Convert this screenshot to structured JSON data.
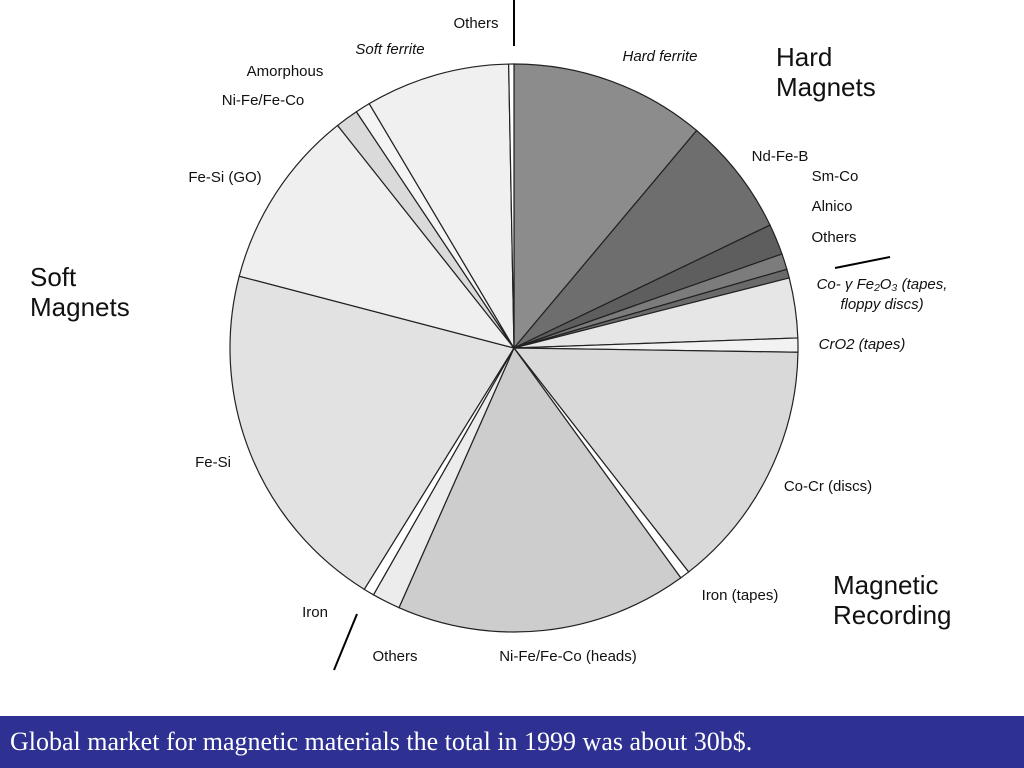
{
  "chart_data": {
    "type": "pie",
    "categories": [
      "Hard ferrite",
      "Nd-Fe-B",
      "Sm-Co",
      "Alnico",
      "Others",
      "Co- γ Fe₂O₃ (tapes, floppy discs)",
      "CrO2  (tapes)",
      "Co-Cr (discs)",
      "Iron (tapes)",
      "Ni-Fe/Fe-Co (heads)",
      "Others",
      "Iron",
      "Fe-Si",
      "Fe-Si (GO)",
      "Ni-Fe/Fe-Co",
      "Amorphous",
      "Soft ferrite",
      "Others"
    ],
    "values": [
      11.1,
      6.75,
      1.75,
      0.9,
      0.5,
      3.4,
      0.8,
      14.2,
      0.55,
      16.6,
      1.6,
      0.6,
      20.2,
      10.25,
      1.3,
      0.85,
      8.2,
      0.3
    ],
    "colors": [
      "#8c8c8c",
      "#6e6e6e",
      "#5e5e5e",
      "#7c7c7c",
      "#6a6a6a",
      "#e6e6e6",
      "#f2f2f2",
      "#d9d9d9",
      "#ffffff",
      "#cdcdcd",
      "#ececec",
      "#ffffff",
      "#e2e2e2",
      "#efefef",
      "#dadada",
      "#f4f4f4",
      "#f0f0f0",
      "#ffffff"
    ],
    "groups": [
      "Hard Magnets",
      "Soft Magnets",
      "Magnetic Recording"
    ],
    "caption": "Global market for magnetic materials the total in 1999 was about 30b$."
  }
}
